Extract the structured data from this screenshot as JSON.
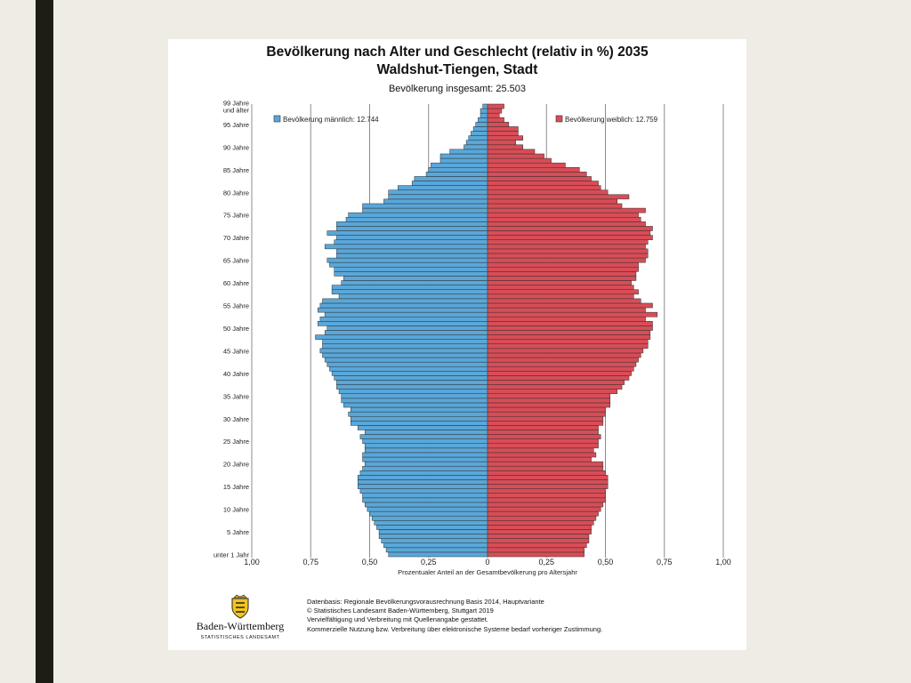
{
  "slide": {
    "title_line1": "Bevölkerung nach Alter und Geschlecht (relativ in %) 2035",
    "title_line2": "Waldshut-Tiengen, Stadt",
    "subtitle": "Bevölkerung insgesamt: 25.503"
  },
  "colors": {
    "male": "#5aa7d9",
    "female": "#d84d57",
    "bar_stroke": "#2f2f2f",
    "grid": "#8c8c8c",
    "slide_bg": "#ffffff",
    "frame_bg": "#efece5",
    "side_bar": "#1d1d14"
  },
  "chart_data": {
    "type": "bar",
    "orientation": "horizontal-population-pyramid",
    "xlabel": "Prozentualer Anteil an der Gesamtbevölkerung pro Altersjahr",
    "x_ticks": [
      "1,00",
      "0,75",
      "0,50",
      "0,25",
      "0",
      "0,25",
      "0,50",
      "0,75",
      "1,00"
    ],
    "xlim": [
      -1.0,
      1.0
    ],
    "grid": "vertical",
    "legend_placement": "top",
    "y_tick_labels": [
      {
        "age": 0,
        "label": "unter 1 Jahr"
      },
      {
        "age": 5,
        "label": "5 Jahre"
      },
      {
        "age": 10,
        "label": "10 Jahre"
      },
      {
        "age": 15,
        "label": "15 Jahre"
      },
      {
        "age": 20,
        "label": "20 Jahre"
      },
      {
        "age": 25,
        "label": "25 Jahre"
      },
      {
        "age": 30,
        "label": "30 Jahre"
      },
      {
        "age": 35,
        "label": "35 Jahre"
      },
      {
        "age": 40,
        "label": "40 Jahre"
      },
      {
        "age": 45,
        "label": "45 Jahre"
      },
      {
        "age": 50,
        "label": "50 Jahre"
      },
      {
        "age": 55,
        "label": "55 Jahre"
      },
      {
        "age": 60,
        "label": "60 Jahre"
      },
      {
        "age": 65,
        "label": "65 Jahre"
      },
      {
        "age": 70,
        "label": "70 Jahre"
      },
      {
        "age": 75,
        "label": "75 Jahre"
      },
      {
        "age": 80,
        "label": "80 Jahre"
      },
      {
        "age": 85,
        "label": "85 Jahre"
      },
      {
        "age": 90,
        "label": "90 Jahre"
      },
      {
        "age": 95,
        "label": "95 Jahre"
      },
      {
        "age": 99,
        "label": "99 Jahre",
        "label2": "und älter"
      }
    ],
    "ages": [
      0,
      1,
      2,
      3,
      4,
      5,
      6,
      7,
      8,
      9,
      10,
      11,
      12,
      13,
      14,
      15,
      16,
      17,
      18,
      19,
      20,
      21,
      22,
      23,
      24,
      25,
      26,
      27,
      28,
      29,
      30,
      31,
      32,
      33,
      34,
      35,
      36,
      37,
      38,
      39,
      40,
      41,
      42,
      43,
      44,
      45,
      46,
      47,
      48,
      49,
      50,
      51,
      52,
      53,
      54,
      55,
      56,
      57,
      58,
      59,
      60,
      61,
      62,
      63,
      64,
      65,
      66,
      67,
      68,
      69,
      70,
      71,
      72,
      73,
      74,
      75,
      76,
      77,
      78,
      79,
      80,
      81,
      82,
      83,
      84,
      85,
      86,
      87,
      88,
      89,
      90,
      91,
      92,
      93,
      94,
      95,
      96,
      97,
      98,
      99
    ],
    "series": [
      {
        "name": "Bevölkerung männlich: 12.744",
        "values": [
          0.42,
          0.43,
          0.44,
          0.45,
          0.46,
          0.46,
          0.47,
          0.48,
          0.49,
          0.5,
          0.51,
          0.52,
          0.53,
          0.53,
          0.54,
          0.55,
          0.55,
          0.55,
          0.54,
          0.53,
          0.52,
          0.53,
          0.53,
          0.52,
          0.52,
          0.53,
          0.54,
          0.52,
          0.55,
          0.58,
          0.58,
          0.59,
          0.58,
          0.61,
          0.62,
          0.62,
          0.63,
          0.64,
          0.64,
          0.65,
          0.66,
          0.67,
          0.68,
          0.69,
          0.7,
          0.71,
          0.7,
          0.7,
          0.73,
          0.69,
          0.68,
          0.72,
          0.71,
          0.69,
          0.72,
          0.71,
          0.7,
          0.63,
          0.66,
          0.66,
          0.62,
          0.61,
          0.65,
          0.65,
          0.67,
          0.68,
          0.64,
          0.64,
          0.69,
          0.65,
          0.64,
          0.68,
          0.64,
          0.64,
          0.6,
          0.59,
          0.53,
          0.53,
          0.44,
          0.42,
          0.42,
          0.38,
          0.32,
          0.31,
          0.26,
          0.25,
          0.24,
          0.2,
          0.2,
          0.16,
          0.1,
          0.09,
          0.08,
          0.07,
          0.06,
          0.05,
          0.04,
          0.03,
          0.03,
          0.02
        ]
      },
      {
        "name": "Bevölkerung weiblich: 12.759",
        "values": [
          0.41,
          0.41,
          0.42,
          0.43,
          0.43,
          0.44,
          0.44,
          0.45,
          0.46,
          0.47,
          0.48,
          0.49,
          0.5,
          0.5,
          0.5,
          0.51,
          0.51,
          0.51,
          0.5,
          0.49,
          0.49,
          0.44,
          0.46,
          0.45,
          0.47,
          0.47,
          0.48,
          0.47,
          0.47,
          0.49,
          0.49,
          0.5,
          0.5,
          0.52,
          0.52,
          0.52,
          0.55,
          0.57,
          0.58,
          0.6,
          0.61,
          0.62,
          0.63,
          0.64,
          0.65,
          0.66,
          0.68,
          0.68,
          0.69,
          0.69,
          0.7,
          0.7,
          0.67,
          0.72,
          0.67,
          0.7,
          0.65,
          0.62,
          0.64,
          0.62,
          0.61,
          0.63,
          0.63,
          0.64,
          0.64,
          0.67,
          0.68,
          0.68,
          0.67,
          0.68,
          0.7,
          0.69,
          0.7,
          0.67,
          0.65,
          0.64,
          0.67,
          0.57,
          0.55,
          0.6,
          0.51,
          0.48,
          0.47,
          0.44,
          0.42,
          0.39,
          0.33,
          0.27,
          0.24,
          0.2,
          0.15,
          0.12,
          0.15,
          0.13,
          0.13,
          0.09,
          0.07,
          0.05,
          0.06,
          0.07
        ]
      }
    ],
    "legend": [
      "Bevölkerung männlich: 12.744",
      "Bevölkerung weiblich: 12.759"
    ]
  },
  "footer": {
    "logo_name": "Baden-Württemberg",
    "logo_subtitle": "STATISTISCHES LANDESAMT",
    "notes": [
      "Datenbasis: Regionale Bevölkerungsvorausrechnung Basis 2014, Hauptvariante",
      "© Statistisches Landesamt Baden-Württemberg, Stuttgart 2019",
      "Vervielfältigung und Verbreitung mit Quellenangabe gestattet.",
      "Kommerzielle Nutzung bzw. Verbreitung über elektronische Systeme bedarf vorheriger Zustimmung."
    ]
  }
}
